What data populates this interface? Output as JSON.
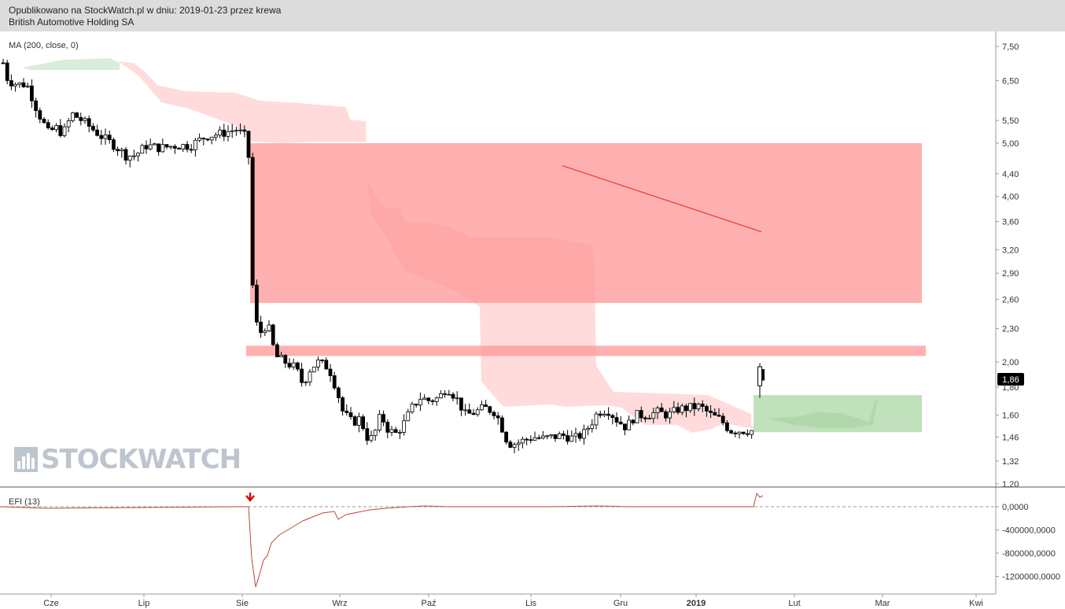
{
  "header": {
    "line1": "Opublikowano na StockWatch.pl w dniu: 2019-01-23 przez krewa",
    "line2": "British Automotive Holding SA"
  },
  "watermark": {
    "text": "STOCKWATCH",
    "icon": "bar-chart-logo-icon",
    "color": "#6e7f93"
  },
  "colors": {
    "candle": "#000000",
    "zone": "#ff9a9a",
    "cloud_red": "#ffcfcf",
    "cloud_green": "#cfe8cf",
    "green_box": "#a9d4a2",
    "trend": "#e53935",
    "efi": "#b84a3a"
  },
  "chart_data": [
    {
      "type": "candlestick",
      "name": "price",
      "indicator_label": "MA (200, close, 0)",
      "scale": "log",
      "yaxis_ticks": [
        "7,50",
        "6,50",
        "5,50",
        "5,00",
        "4,40",
        "4,00",
        "3,60",
        "3,20",
        "2,90",
        "2,60",
        "2,30",
        "2,00",
        "1,80",
        "1,60",
        "1,46",
        "1,32",
        "1,20"
      ],
      "ylim": [
        1.2,
        7.8
      ],
      "x_labels": [
        "Cze",
        "Lip",
        "Sie",
        "Wrz",
        "Paź",
        "Lis",
        "Gru",
        "2019",
        "Lut",
        "Mar",
        "Kwi"
      ],
      "last_price": "1,86",
      "grid": false,
      "annotations": {
        "resistance_zone": {
          "from": 2.56,
          "to": 5.0
        },
        "resistance_band": {
          "from": 2.05,
          "to": 2.14
        },
        "support_zone": {
          "from": 1.49,
          "to": 1.74
        },
        "trend_line": {
          "from": 4.55,
          "to": 3.45
        }
      }
    },
    {
      "type": "line",
      "name": "EFI (13)",
      "yaxis_ticks": [
        "0,0000",
        "-400000,0000",
        "-800000,0000",
        "-1200000,0000"
      ],
      "ylim": [
        -1300000,
        200000
      ],
      "min_value": -1300000,
      "signal": "down-arrow"
    }
  ]
}
